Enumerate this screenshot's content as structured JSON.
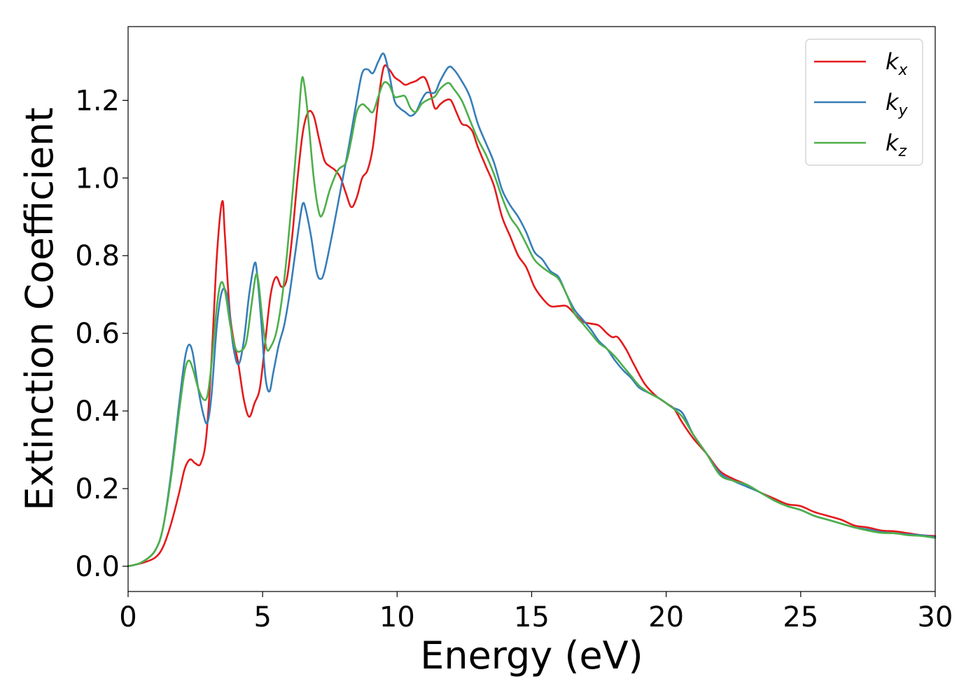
{
  "chart_data": {
    "type": "line",
    "xlabel": "Energy (eV)",
    "ylabel": "Extinction Coefficient",
    "xlim": [
      0,
      30
    ],
    "ylim": [
      -0.065,
      1.39
    ],
    "xticks": [
      0,
      5,
      10,
      15,
      20,
      25,
      30
    ],
    "xtick_labels": [
      "0",
      "5",
      "10",
      "15",
      "20",
      "25",
      "30"
    ],
    "yticks": [
      0.0,
      0.2,
      0.4,
      0.6,
      0.8,
      1.0,
      1.2
    ],
    "ytick_labels": [
      "0.0",
      "0.2",
      "0.4",
      "0.6",
      "0.8",
      "1.0",
      "1.2"
    ],
    "grid": false,
    "legend_position": "top-right",
    "series": [
      {
        "name": "k_x",
        "legend_base": "k",
        "legend_sub": "x",
        "color": "#e41a1c",
        "points": [
          [
            0,
            0
          ],
          [
            0.5,
            0.008
          ],
          [
            1,
            0.022
          ],
          [
            1.3,
            0.05
          ],
          [
            1.6,
            0.11
          ],
          [
            1.9,
            0.19
          ],
          [
            2.1,
            0.25
          ],
          [
            2.3,
            0.275
          ],
          [
            2.5,
            0.265
          ],
          [
            2.7,
            0.265
          ],
          [
            2.9,
            0.33
          ],
          [
            3.1,
            0.53
          ],
          [
            3.3,
            0.8
          ],
          [
            3.5,
            0.94
          ],
          [
            3.6,
            0.85
          ],
          [
            3.8,
            0.64
          ],
          [
            4.1,
            0.52
          ],
          [
            4.3,
            0.43
          ],
          [
            4.5,
            0.385
          ],
          [
            4.7,
            0.42
          ],
          [
            4.9,
            0.46
          ],
          [
            5.1,
            0.58
          ],
          [
            5.3,
            0.7
          ],
          [
            5.5,
            0.745
          ],
          [
            5.7,
            0.72
          ],
          [
            5.9,
            0.74
          ],
          [
            6.1,
            0.85
          ],
          [
            6.3,
            1.0
          ],
          [
            6.5,
            1.12
          ],
          [
            6.7,
            1.17
          ],
          [
            6.9,
            1.16
          ],
          [
            7.1,
            1.1
          ],
          [
            7.3,
            1.045
          ],
          [
            7.5,
            1.03
          ],
          [
            7.7,
            1.02
          ],
          [
            7.9,
            1.0
          ],
          [
            8.1,
            0.96
          ],
          [
            8.3,
            0.925
          ],
          [
            8.5,
            0.95
          ],
          [
            8.7,
            1.0
          ],
          [
            8.9,
            1.02
          ],
          [
            9.1,
            1.08
          ],
          [
            9.3,
            1.2
          ],
          [
            9.5,
            1.285
          ],
          [
            9.7,
            1.28
          ],
          [
            9.9,
            1.26
          ],
          [
            10.1,
            1.25
          ],
          [
            10.3,
            1.24
          ],
          [
            10.5,
            1.245
          ],
          [
            10.7,
            1.25
          ],
          [
            11.0,
            1.26
          ],
          [
            11.2,
            1.23
          ],
          [
            11.4,
            1.18
          ],
          [
            11.6,
            1.19
          ],
          [
            11.8,
            1.2
          ],
          [
            12.0,
            1.2
          ],
          [
            12.2,
            1.17
          ],
          [
            12.4,
            1.14
          ],
          [
            12.6,
            1.135
          ],
          [
            12.8,
            1.12
          ],
          [
            13.0,
            1.08
          ],
          [
            13.3,
            1.03
          ],
          [
            13.6,
            0.98
          ],
          [
            13.9,
            0.9
          ],
          [
            14.2,
            0.85
          ],
          [
            14.5,
            0.8
          ],
          [
            14.8,
            0.77
          ],
          [
            15.1,
            0.72
          ],
          [
            15.4,
            0.69
          ],
          [
            15.7,
            0.67
          ],
          [
            16.0,
            0.67
          ],
          [
            16.3,
            0.67
          ],
          [
            16.6,
            0.65
          ],
          [
            16.9,
            0.63
          ],
          [
            17.2,
            0.625
          ],
          [
            17.5,
            0.62
          ],
          [
            17.8,
            0.6
          ],
          [
            18.0,
            0.59
          ],
          [
            18.2,
            0.59
          ],
          [
            18.5,
            0.56
          ],
          [
            18.8,
            0.52
          ],
          [
            19.2,
            0.47
          ],
          [
            19.6,
            0.44
          ],
          [
            20.0,
            0.42
          ],
          [
            20.3,
            0.405
          ],
          [
            20.6,
            0.37
          ],
          [
            21.0,
            0.33
          ],
          [
            21.5,
            0.29
          ],
          [
            22.0,
            0.245
          ],
          [
            22.5,
            0.225
          ],
          [
            23.0,
            0.21
          ],
          [
            23.5,
            0.19
          ],
          [
            24.0,
            0.175
          ],
          [
            24.5,
            0.16
          ],
          [
            25.0,
            0.155
          ],
          [
            25.5,
            0.14
          ],
          [
            26.0,
            0.13
          ],
          [
            26.5,
            0.12
          ],
          [
            27.0,
            0.105
          ],
          [
            27.5,
            0.1
          ],
          [
            28.0,
            0.092
          ],
          [
            28.5,
            0.09
          ],
          [
            29.0,
            0.085
          ],
          [
            29.5,
            0.08
          ],
          [
            30.0,
            0.078
          ]
        ]
      },
      {
        "name": "k_y",
        "legend_base": "k",
        "legend_sub": "y",
        "color": "#377eb8",
        "points": [
          [
            0,
            0
          ],
          [
            0.5,
            0.01
          ],
          [
            1,
            0.04
          ],
          [
            1.3,
            0.1
          ],
          [
            1.6,
            0.24
          ],
          [
            1.9,
            0.42
          ],
          [
            2.1,
            0.53
          ],
          [
            2.25,
            0.57
          ],
          [
            2.4,
            0.55
          ],
          [
            2.6,
            0.46
          ],
          [
            2.8,
            0.39
          ],
          [
            2.95,
            0.37
          ],
          [
            3.1,
            0.44
          ],
          [
            3.3,
            0.62
          ],
          [
            3.5,
            0.71
          ],
          [
            3.7,
            0.69
          ],
          [
            3.9,
            0.57
          ],
          [
            4.1,
            0.52
          ],
          [
            4.3,
            0.58
          ],
          [
            4.5,
            0.7
          ],
          [
            4.7,
            0.78
          ],
          [
            4.8,
            0.75
          ],
          [
            4.95,
            0.63
          ],
          [
            5.1,
            0.49
          ],
          [
            5.25,
            0.45
          ],
          [
            5.4,
            0.5
          ],
          [
            5.6,
            0.57
          ],
          [
            5.8,
            0.62
          ],
          [
            6.0,
            0.7
          ],
          [
            6.2,
            0.8
          ],
          [
            6.4,
            0.9
          ],
          [
            6.5,
            0.935
          ],
          [
            6.6,
            0.92
          ],
          [
            6.8,
            0.85
          ],
          [
            7.0,
            0.76
          ],
          [
            7.15,
            0.74
          ],
          [
            7.3,
            0.76
          ],
          [
            7.6,
            0.86
          ],
          [
            7.9,
            0.97
          ],
          [
            8.2,
            1.08
          ],
          [
            8.5,
            1.2
          ],
          [
            8.7,
            1.27
          ],
          [
            8.9,
            1.28
          ],
          [
            9.1,
            1.27
          ],
          [
            9.3,
            1.3
          ],
          [
            9.5,
            1.32
          ],
          [
            9.7,
            1.27
          ],
          [
            9.9,
            1.2
          ],
          [
            10.1,
            1.18
          ],
          [
            10.3,
            1.17
          ],
          [
            10.5,
            1.16
          ],
          [
            10.7,
            1.17
          ],
          [
            10.9,
            1.2
          ],
          [
            11.1,
            1.22
          ],
          [
            11.4,
            1.22
          ],
          [
            11.6,
            1.25
          ],
          [
            11.9,
            1.285
          ],
          [
            12.1,
            1.28
          ],
          [
            12.4,
            1.25
          ],
          [
            12.7,
            1.21
          ],
          [
            13.0,
            1.14
          ],
          [
            13.3,
            1.09
          ],
          [
            13.6,
            1.04
          ],
          [
            13.9,
            0.97
          ],
          [
            14.2,
            0.93
          ],
          [
            14.5,
            0.9
          ],
          [
            14.8,
            0.86
          ],
          [
            15.1,
            0.81
          ],
          [
            15.4,
            0.79
          ],
          [
            15.7,
            0.76
          ],
          [
            16.0,
            0.745
          ],
          [
            16.3,
            0.7
          ],
          [
            16.6,
            0.66
          ],
          [
            16.9,
            0.635
          ],
          [
            17.2,
            0.61
          ],
          [
            17.5,
            0.58
          ],
          [
            17.8,
            0.56
          ],
          [
            18.1,
            0.53
          ],
          [
            18.4,
            0.505
          ],
          [
            18.7,
            0.485
          ],
          [
            19.0,
            0.46
          ],
          [
            19.4,
            0.445
          ],
          [
            19.8,
            0.43
          ],
          [
            20.2,
            0.41
          ],
          [
            20.6,
            0.395
          ],
          [
            21.0,
            0.34
          ],
          [
            21.5,
            0.29
          ],
          [
            22.0,
            0.24
          ],
          [
            22.5,
            0.22
          ],
          [
            23.0,
            0.205
          ],
          [
            23.5,
            0.19
          ],
          [
            24.0,
            0.17
          ],
          [
            24.5,
            0.155
          ],
          [
            25.0,
            0.145
          ],
          [
            25.5,
            0.13
          ],
          [
            26.0,
            0.12
          ],
          [
            26.5,
            0.11
          ],
          [
            27.0,
            0.1
          ],
          [
            27.5,
            0.095
          ],
          [
            28.0,
            0.088
          ],
          [
            28.5,
            0.085
          ],
          [
            29.0,
            0.082
          ],
          [
            29.5,
            0.08
          ],
          [
            30.0,
            0.075
          ]
        ]
      },
      {
        "name": "k_z",
        "legend_base": "k",
        "legend_sub": "z",
        "color": "#4daf4a",
        "points": [
          [
            0,
            0
          ],
          [
            0.5,
            0.01
          ],
          [
            1,
            0.04
          ],
          [
            1.3,
            0.1
          ],
          [
            1.6,
            0.23
          ],
          [
            1.9,
            0.4
          ],
          [
            2.1,
            0.5
          ],
          [
            2.25,
            0.53
          ],
          [
            2.4,
            0.51
          ],
          [
            2.6,
            0.46
          ],
          [
            2.8,
            0.43
          ],
          [
            2.95,
            0.44
          ],
          [
            3.1,
            0.52
          ],
          [
            3.3,
            0.67
          ],
          [
            3.45,
            0.73
          ],
          [
            3.6,
            0.71
          ],
          [
            3.8,
            0.62
          ],
          [
            4.0,
            0.56
          ],
          [
            4.2,
            0.555
          ],
          [
            4.4,
            0.58
          ],
          [
            4.6,
            0.68
          ],
          [
            4.75,
            0.75
          ],
          [
            4.85,
            0.73
          ],
          [
            5.0,
            0.63
          ],
          [
            5.15,
            0.56
          ],
          [
            5.3,
            0.565
          ],
          [
            5.5,
            0.6
          ],
          [
            5.7,
            0.68
          ],
          [
            5.9,
            0.8
          ],
          [
            6.1,
            0.95
          ],
          [
            6.3,
            1.12
          ],
          [
            6.45,
            1.25
          ],
          [
            6.55,
            1.24
          ],
          [
            6.7,
            1.15
          ],
          [
            6.9,
            1.0
          ],
          [
            7.1,
            0.91
          ],
          [
            7.25,
            0.91
          ],
          [
            7.5,
            0.97
          ],
          [
            7.8,
            1.02
          ],
          [
            8.1,
            1.04
          ],
          [
            8.3,
            1.1
          ],
          [
            8.5,
            1.17
          ],
          [
            8.7,
            1.19
          ],
          [
            8.9,
            1.18
          ],
          [
            9.1,
            1.17
          ],
          [
            9.3,
            1.21
          ],
          [
            9.5,
            1.245
          ],
          [
            9.7,
            1.24
          ],
          [
            9.9,
            1.21
          ],
          [
            10.1,
            1.21
          ],
          [
            10.3,
            1.21
          ],
          [
            10.5,
            1.18
          ],
          [
            10.7,
            1.17
          ],
          [
            10.9,
            1.19
          ],
          [
            11.1,
            1.2
          ],
          [
            11.4,
            1.21
          ],
          [
            11.6,
            1.23
          ],
          [
            11.9,
            1.245
          ],
          [
            12.1,
            1.23
          ],
          [
            12.4,
            1.2
          ],
          [
            12.7,
            1.15
          ],
          [
            13.0,
            1.1
          ],
          [
            13.3,
            1.06
          ],
          [
            13.6,
            1.01
          ],
          [
            13.9,
            0.95
          ],
          [
            14.2,
            0.9
          ],
          [
            14.5,
            0.87
          ],
          [
            14.8,
            0.83
          ],
          [
            15.1,
            0.79
          ],
          [
            15.4,
            0.77
          ],
          [
            15.7,
            0.755
          ],
          [
            16.0,
            0.74
          ],
          [
            16.3,
            0.7
          ],
          [
            16.6,
            0.65
          ],
          [
            16.9,
            0.625
          ],
          [
            17.2,
            0.6
          ],
          [
            17.5,
            0.575
          ],
          [
            17.8,
            0.56
          ],
          [
            18.1,
            0.54
          ],
          [
            18.4,
            0.515
          ],
          [
            18.7,
            0.49
          ],
          [
            19.0,
            0.465
          ],
          [
            19.4,
            0.445
          ],
          [
            19.8,
            0.43
          ],
          [
            20.2,
            0.41
          ],
          [
            20.6,
            0.385
          ],
          [
            21.0,
            0.34
          ],
          [
            21.5,
            0.29
          ],
          [
            22.0,
            0.235
          ],
          [
            22.5,
            0.22
          ],
          [
            23.0,
            0.21
          ],
          [
            23.5,
            0.19
          ],
          [
            24.0,
            0.17
          ],
          [
            24.5,
            0.155
          ],
          [
            25.0,
            0.145
          ],
          [
            25.5,
            0.13
          ],
          [
            26.0,
            0.12
          ],
          [
            26.5,
            0.11
          ],
          [
            27.0,
            0.1
          ],
          [
            27.5,
            0.092
          ],
          [
            28.0,
            0.086
          ],
          [
            28.5,
            0.085
          ],
          [
            29.0,
            0.08
          ],
          [
            29.5,
            0.078
          ],
          [
            30.0,
            0.073
          ]
        ]
      }
    ]
  }
}
